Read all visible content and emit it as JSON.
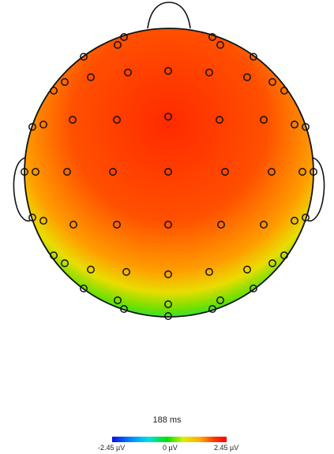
{
  "latency_label": "188 ms",
  "colorbar": {
    "min_label": "-2.45 µV",
    "mid_label": "0 µV",
    "max_label": "2.45 µV",
    "colors": [
      "#0a10e6",
      "#0090ff",
      "#00e0e0",
      "#00e000",
      "#d8f000",
      "#ffb000",
      "#ff3000",
      "#ff0000"
    ]
  }
}
